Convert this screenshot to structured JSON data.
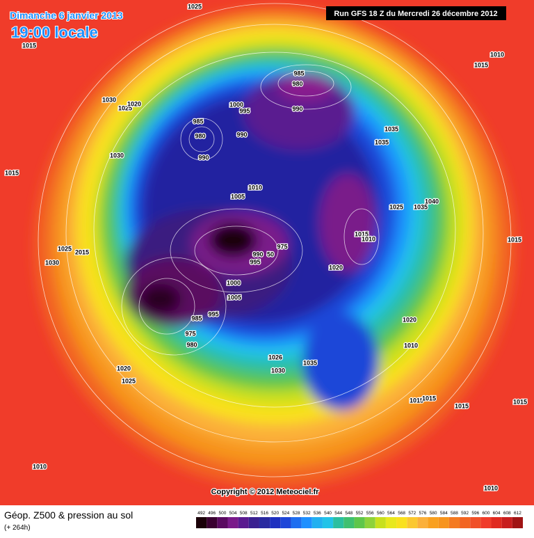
{
  "header": {
    "date": "Dimanche 6 janvier 2013",
    "time": "19:00 locale",
    "run": "Run GFS 18 Z du Mercredi 26 décembre 2012"
  },
  "copyright": "Copyright © 2012 Meteociel.fr",
  "footer": {
    "title": "Géop. Z500 & pression au sol",
    "lead": "(+ 264h)"
  },
  "colorbar": {
    "labels": [
      492,
      496,
      500,
      504,
      508,
      512,
      516,
      520,
      524,
      528,
      532,
      536,
      540,
      544,
      548,
      552,
      556,
      560,
      564,
      568,
      572,
      576,
      580,
      584,
      588,
      592,
      596,
      600,
      604,
      608,
      612
    ],
    "colors": [
      "#1a0008",
      "#3a0030",
      "#5a0a60",
      "#7a1a8a",
      "#5a1a90",
      "#3a2090",
      "#2a2aa0",
      "#1e30c0",
      "#1e46d8",
      "#1e6ef0",
      "#1e90ff",
      "#22b0f0",
      "#22c3e8",
      "#2bbfa0",
      "#3fc070",
      "#5ec64a",
      "#8ed23a",
      "#c8e01e",
      "#e8e81e",
      "#f9e11e",
      "#fbc830",
      "#fbb03b",
      "#f9a020",
      "#f7941d",
      "#f47a20",
      "#f26522",
      "#f05028",
      "#f03c2a",
      "#e02a20",
      "#c81e1e",
      "#a01414"
    ]
  },
  "isobars": [
    "1025",
    "1015",
    "1030",
    "1025",
    "1020",
    "1015",
    "1030",
    "985",
    "980",
    "990",
    "1000",
    "995",
    "990",
    "985",
    "980",
    "990",
    "1010",
    "1005",
    "1035",
    "1035",
    "1025",
    "1035",
    "1040",
    "1015",
    "1010",
    "1020",
    "975",
    "990",
    "50",
    "995",
    "1000",
    "1005",
    "985",
    "995",
    "975",
    "980",
    "1025",
    "2015",
    "1030",
    "1020",
    "1025",
    "1026",
    "1030",
    "1035",
    "1020",
    "1010",
    "1015",
    "1015",
    "1015",
    "1015",
    "1015",
    "1010",
    "1015",
    "1010",
    "1010"
  ]
}
